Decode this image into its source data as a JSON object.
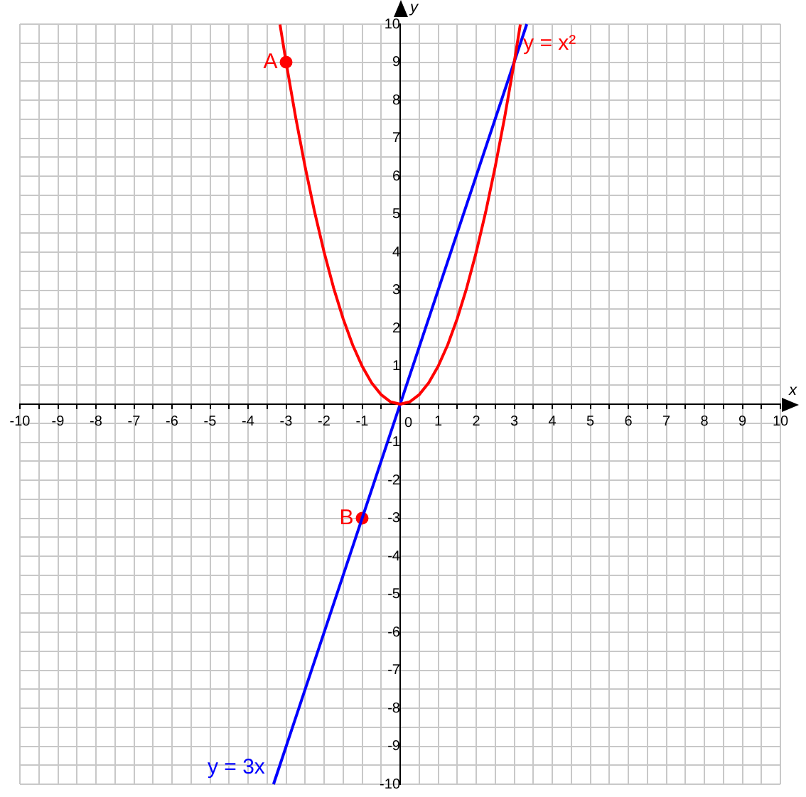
{
  "chart_data": {
    "type": "line",
    "xlabel": "x",
    "ylabel": "y",
    "xlim": [
      -10,
      10
    ],
    "ylim": [
      -10,
      10
    ],
    "xticks": [
      -10,
      {
        "value": -9.5,
        "label": null
      },
      -9,
      {
        "value": -8.5,
        "label": null
      },
      -8,
      {
        "value": -7.5,
        "label": null
      },
      -7,
      {
        "value": -6.5,
        "label": null
      },
      -6,
      {
        "value": -5.5,
        "label": null
      },
      -5,
      {
        "value": -4.5,
        "label": null
      },
      -4,
      {
        "value": -3.5,
        "label": null
      },
      -3,
      {
        "value": -2.5,
        "label": null
      },
      -2,
      {
        "value": -1.5,
        "label": null
      },
      -1,
      {
        "value": -0.5,
        "label": null
      },
      0,
      {
        "value": 0.5,
        "label": null
      },
      1,
      {
        "value": 1.5,
        "label": null
      },
      2,
      {
        "value": 2.5,
        "label": null
      },
      3,
      {
        "value": 3.5,
        "label": null
      },
      4,
      {
        "value": 4.5,
        "label": null
      },
      5,
      {
        "value": 5.5,
        "label": null
      },
      6,
      {
        "value": 6.5,
        "label": null
      },
      7,
      {
        "value": 7.5,
        "label": null
      },
      8,
      {
        "value": 8.5,
        "label": null
      },
      9,
      {
        "value": 9.5,
        "label": null
      },
      10
    ],
    "yticks": [
      -10,
      {
        "value": -9.5,
        "label": null
      },
      -9,
      {
        "value": -8.5,
        "label": null
      },
      -8,
      {
        "value": -7.5,
        "label": null
      },
      -7,
      {
        "value": -6.5,
        "label": null
      },
      -6,
      {
        "value": -5.5,
        "label": null
      },
      -5,
      {
        "value": -4.5,
        "label": null
      },
      -4,
      {
        "value": -3.5,
        "label": null
      },
      -3,
      {
        "value": -2.5,
        "label": null
      },
      -2,
      {
        "value": -1.5,
        "label": null
      },
      -1,
      {
        "value": -0.5,
        "label": null
      },
      {
        "value": 0,
        "label": null
      },
      {
        "value": 0.5,
        "label": null
      },
      1,
      {
        "value": 1.5,
        "label": null
      },
      2,
      {
        "value": 2.5,
        "label": null
      },
      3,
      {
        "value": 3.5,
        "label": null
      },
      4,
      {
        "value": 4.5,
        "label": null
      },
      5,
      {
        "value": 5.5,
        "label": null
      },
      6,
      {
        "value": 6.5,
        "label": null
      },
      7,
      {
        "value": 7.5,
        "label": null
      },
      8,
      {
        "value": 8.5,
        "label": null
      },
      9,
      {
        "value": 9.5,
        "label": null
      },
      10
    ],
    "grid": true,
    "legend": false,
    "series": [
      {
        "name": "y = x²",
        "color": "#ff0000",
        "x": [
          -3.16,
          -3,
          -2.75,
          -2.5,
          -2.25,
          -2,
          -1.75,
          -1.5,
          -1.25,
          -1,
          -0.75,
          -0.5,
          -0.25,
          0,
          0.25,
          0.5,
          0.75,
          1,
          1.25,
          1.5,
          1.75,
          2,
          2.25,
          2.5,
          2.75,
          3,
          3.16
        ],
        "values": [
          9.99,
          9,
          7.56,
          6.25,
          5.06,
          4,
          3.06,
          2.25,
          1.56,
          1,
          0.56,
          0.25,
          0.06,
          0,
          0.06,
          0.25,
          0.56,
          1,
          1.56,
          2.25,
          3.06,
          4,
          5.06,
          6.25,
          7.56,
          9,
          9.99
        ]
      },
      {
        "name": "y = 3x",
        "color": "#0000ff",
        "x": [
          -3.33,
          3.33
        ],
        "values": [
          -10,
          10
        ]
      },
      {
        "type": "scatter",
        "marker": "circle",
        "color": "#ff0000",
        "x": [
          -3,
          -1
        ],
        "values": [
          9,
          -3
        ]
      }
    ],
    "annotations": [
      {
        "text": "A",
        "x": -3,
        "y": 9
      },
      {
        "text": "B",
        "x": -1,
        "y": -3
      }
    ]
  }
}
